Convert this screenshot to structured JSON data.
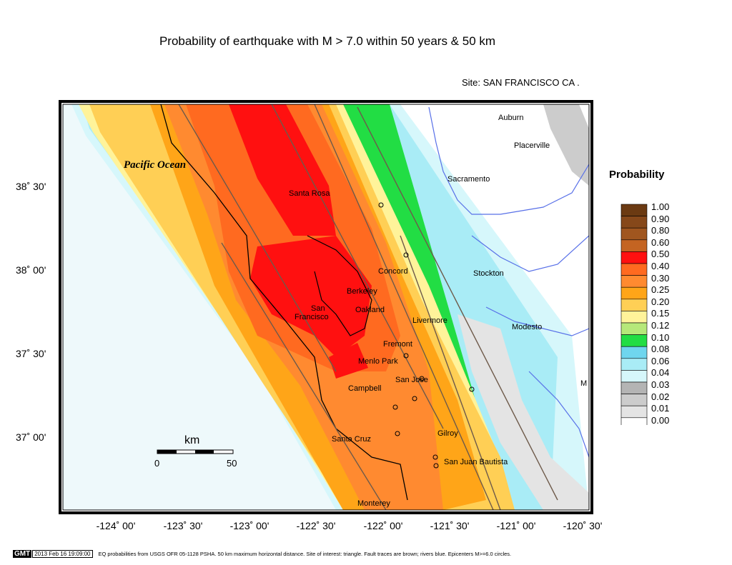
{
  "title": "Probability of earthquake with M > 7.0 within 50 years & 50 km",
  "site_label": "Site: SAN  FRANCISCO CA .",
  "legend": {
    "title": "Probability",
    "entries": [
      {
        "label": "1.00",
        "color": "#6b3a12"
      },
      {
        "label": "0.90",
        "color": "#86481a"
      },
      {
        "label": "0.80",
        "color": "#a0561f"
      },
      {
        "label": "0.60",
        "color": "#c46422"
      },
      {
        "label": "0.50",
        "color": "#ff1010"
      },
      {
        "label": "0.40",
        "color": "#ff6a20"
      },
      {
        "label": "0.30",
        "color": "#ff8a30"
      },
      {
        "label": "0.25",
        "color": "#ffa518"
      },
      {
        "label": "0.20",
        "color": "#ffcf55"
      },
      {
        "label": "0.15",
        "color": "#fff39a"
      },
      {
        "label": "0.12",
        "color": "#b6e87a"
      },
      {
        "label": "0.10",
        "color": "#22dd44"
      },
      {
        "label": "0.08",
        "color": "#6fd6ee"
      },
      {
        "label": "0.06",
        "color": "#a9ecf6"
      },
      {
        "label": "0.04",
        "color": "#d6f7fb"
      },
      {
        "label": "0.03",
        "color": "#b4b4b4"
      },
      {
        "label": "0.02",
        "color": "#cccccc"
      },
      {
        "label": "0.01",
        "color": "#e4e4e4"
      },
      {
        "label": "0.00",
        "color": "#ffffff"
      }
    ]
  },
  "axes": {
    "lat_ticks": [
      "38˚ 30'",
      "38˚ 00'",
      "37˚ 30'",
      "37˚ 00'"
    ],
    "lon_ticks": [
      "-124˚ 00'",
      "-123˚ 30'",
      "-123˚ 00'",
      "-122˚ 30'",
      "-122˚ 00'",
      "-121˚ 30'",
      "-121˚ 00'",
      "-120˚ 30'"
    ]
  },
  "map": {
    "ocean_label": "Pacific Ocean",
    "cities": [
      {
        "name": "Auburn"
      },
      {
        "name": "Placerville"
      },
      {
        "name": "Sacramento"
      },
      {
        "name": "Santa Rosa"
      },
      {
        "name": "Concord"
      },
      {
        "name": "Stockton"
      },
      {
        "name": "Berkeley"
      },
      {
        "name": "Oakland"
      },
      {
        "name": "San"
      },
      {
        "name": "Francisco"
      },
      {
        "name": "Livermore"
      },
      {
        "name": "Modesto"
      },
      {
        "name": "Fremont"
      },
      {
        "name": "Menlo Park"
      },
      {
        "name": "San Jose"
      },
      {
        "name": "Campbell"
      },
      {
        "name": "M"
      },
      {
        "name": "Gilroy"
      },
      {
        "name": "Santa Cruz"
      },
      {
        "name": "San Juan Bautista"
      },
      {
        "name": "Monterey"
      }
    ],
    "scale_bar": {
      "unit": "km",
      "start": "0",
      "end": "50"
    }
  },
  "footer": {
    "badge": "GMT",
    "date": "2013 Feb 16 19:09:00",
    "note": "EQ probabilities from USGS OFR 05-1128 PSHA. 50 km maximum horizontal distance. Site of interest: triangle. Fault traces are brown; rivers blue. Epicenters M>=6.0 circles."
  }
}
